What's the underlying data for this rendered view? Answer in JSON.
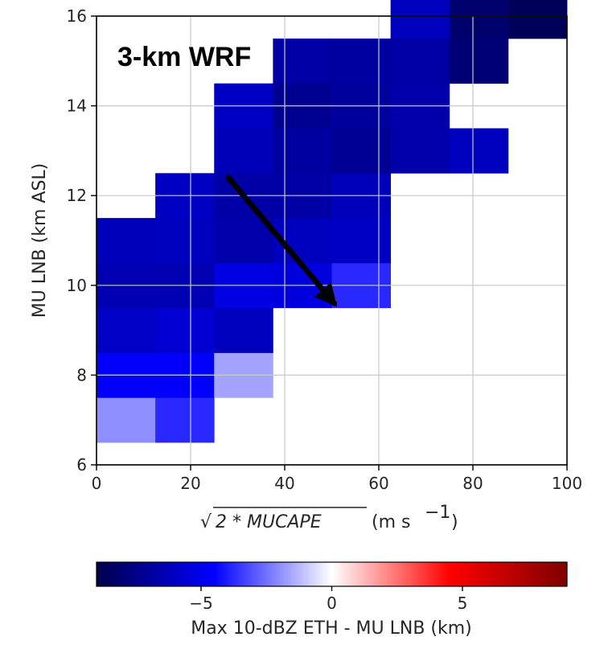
{
  "chart_data": {
    "type": "heatmap",
    "annotation": "3-km WRF",
    "xlabel": {
      "sqrt_symbol": "√",
      "expression": "2 * MUCAPE",
      "units_prefix": "(m s",
      "units_exponent": "−1",
      "units_suffix": ")"
    },
    "ylabel": "MU LNB (km ASL)",
    "xlim": [
      0,
      100
    ],
    "ylim": [
      6,
      16
    ],
    "x_ticks": [
      "0",
      "20",
      "40",
      "60",
      "80",
      "100"
    ],
    "y_ticks": [
      "6",
      "8",
      "10",
      "12",
      "14",
      "16"
    ],
    "grid": true,
    "bin_width_x": 12.5,
    "bin_height_y": 1.0,
    "cells": [
      {
        "x": 0,
        "y": 6.5,
        "value": -2.0
      },
      {
        "x": 12.5,
        "y": 6.5,
        "value": -3.8
      },
      {
        "x": 0,
        "y": 7.5,
        "value": -4.6
      },
      {
        "x": 12.5,
        "y": 7.5,
        "value": -4.6
      },
      {
        "x": 25,
        "y": 7.5,
        "value": -1.6
      },
      {
        "x": 0,
        "y": 8.5,
        "value": -5.9
      },
      {
        "x": 12.5,
        "y": 8.5,
        "value": -5.6
      },
      {
        "x": 25,
        "y": 8.5,
        "value": -6.1
      },
      {
        "x": 0,
        "y": 9.5,
        "value": -6.4
      },
      {
        "x": 12.5,
        "y": 9.5,
        "value": -6.4
      },
      {
        "x": 25,
        "y": 9.5,
        "value": -5.2
      },
      {
        "x": 37.5,
        "y": 9.5,
        "value": -5.3
      },
      {
        "x": 50,
        "y": 9.5,
        "value": -3.8
      },
      {
        "x": 0,
        "y": 10.5,
        "value": -6.2
      },
      {
        "x": 12.5,
        "y": 10.5,
        "value": -6.1
      },
      {
        "x": 25,
        "y": 10.5,
        "value": -6.6
      },
      {
        "x": 37.5,
        "y": 10.5,
        "value": -6.1
      },
      {
        "x": 50,
        "y": 10.5,
        "value": -6.0
      },
      {
        "x": 12.5,
        "y": 11.5,
        "value": -6.0
      },
      {
        "x": 25,
        "y": 11.5,
        "value": -6.7
      },
      {
        "x": 37.5,
        "y": 11.5,
        "value": -6.8
      },
      {
        "x": 50,
        "y": 11.5,
        "value": -6.2
      },
      {
        "x": 25,
        "y": 12.5,
        "value": -6.3
      },
      {
        "x": 37.5,
        "y": 12.5,
        "value": -6.9
      },
      {
        "x": 50,
        "y": 12.5,
        "value": -7.2
      },
      {
        "x": 62.5,
        "y": 12.5,
        "value": -6.6
      },
      {
        "x": 25,
        "y": 13.5,
        "value": -6.0
      },
      {
        "x": 37.5,
        "y": 13.5,
        "value": -7.3
      },
      {
        "x": 50,
        "y": 13.5,
        "value": -7.0
      },
      {
        "x": 62.5,
        "y": 13.5,
        "value": -6.6
      },
      {
        "x": 75,
        "y": 12.5,
        "value": -6.1
      },
      {
        "x": 37.5,
        "y": 14.5,
        "value": -6.8
      },
      {
        "x": 50,
        "y": 14.5,
        "value": -6.9
      },
      {
        "x": 62.5,
        "y": 14.5,
        "value": -6.8
      },
      {
        "x": 75,
        "y": 14.5,
        "value": -8.0
      },
      {
        "x": 62.5,
        "y": 15.5,
        "value": -6.1
      },
      {
        "x": 75,
        "y": 15.5,
        "value": -8.2
      },
      {
        "x": 87.5,
        "y": 15.5,
        "value": -8.7
      }
    ],
    "arrow": {
      "from": [
        28,
        12.4
      ],
      "to": [
        50.5,
        9.6
      ]
    },
    "colorbar": {
      "label": "Max 10-dBZ ETH - MU LNB (km)",
      "range": [
        -9,
        9
      ],
      "ticks": [
        "−5",
        "0",
        "5"
      ],
      "tick_values": [
        -5,
        0,
        5
      ],
      "colormap": "seismic",
      "stops": [
        "#00004c",
        "#0000ff",
        "#ffffff",
        "#ff0000",
        "#7f0000"
      ]
    }
  }
}
